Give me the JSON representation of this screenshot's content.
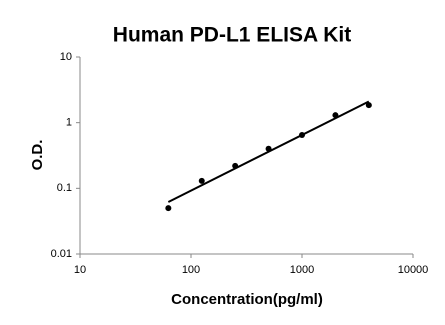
{
  "chart_data": {
    "type": "scatter",
    "title": "Human PD-L1 ELISA Kit",
    "x_label": "Concentration(pg/ml)",
    "y_label": "O.D.",
    "xscale": "log",
    "yscale": "log",
    "xlim": [
      10,
      10000
    ],
    "xticks": [
      10,
      100,
      1000,
      10000
    ],
    "ylim": [
      0.01,
      10
    ],
    "yticks": [
      0.01,
      0.1,
      1,
      10
    ],
    "grid": false,
    "series": [
      {
        "mode": "markers",
        "color": "#000000",
        "x": [
          62.5,
          125,
          250,
          500,
          1000,
          2000,
          4000
        ],
        "values": [
          0.05,
          0.13,
          0.22,
          0.4,
          0.65,
          1.3,
          1.85
        ]
      },
      {
        "mode": "line",
        "color": "#000000",
        "x": [
          62.5,
          4000
        ],
        "values": [
          0.062,
          2.1
        ]
      }
    ]
  }
}
